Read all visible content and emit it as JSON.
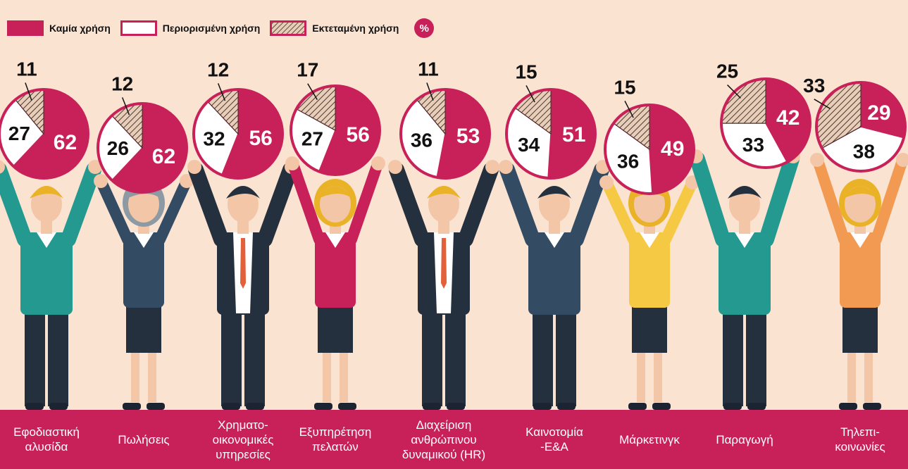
{
  "legend": {
    "items": [
      {
        "label": "Καμία χρήση",
        "key": "none"
      },
      {
        "label": "Περιορισμένη χρήση",
        "key": "limited"
      },
      {
        "label": "Εκτεταμένη χρήση",
        "key": "extensive"
      }
    ],
    "unit": "%"
  },
  "colors": {
    "none": "#c8215a",
    "limited": "#ffffff",
    "extensive": "#e8cdb8",
    "background": "#fbe3d2",
    "footer": "#c8215a"
  },
  "chart_data": {
    "type": "pie",
    "series_names": [
      "Καμία χρήση",
      "Περιορισμένη χρήση",
      "Εκτεταμένη χρήση"
    ],
    "unit": "%",
    "categories": [
      "Εφοδιαστική\nαλυσίδα",
      "Πωλήσεις",
      "Χρηματο-\nοικονομικές\nυπηρεσίες",
      "Εξυπηρέτηση\nπελατών",
      "Διαχείριση\nανθρώπινου\nδυναμικού (HR)",
      "Καινοτομία\n-Ε&Α",
      "Μάρκετινγκ",
      "Παραγωγή",
      "Τηλεπι-\nκοινωνίες"
    ],
    "values": [
      {
        "none": 62,
        "limited": 27,
        "extensive": 11
      },
      {
        "none": 62,
        "limited": 26,
        "extensive": 12
      },
      {
        "none": 56,
        "limited": 32,
        "extensive": 12
      },
      {
        "none": 56,
        "limited": 27,
        "extensive": 17
      },
      {
        "none": 53,
        "limited": 36,
        "extensive": 11
      },
      {
        "none": 51,
        "limited": 34,
        "extensive": 15
      },
      {
        "none": 49,
        "limited": 36,
        "extensive": 15
      },
      {
        "none": 42,
        "limited": 33,
        "extensive": 25
      },
      {
        "none": 29,
        "limited": 38,
        "extensive": 33
      }
    ],
    "people": [
      {
        "hair": "#e9b227",
        "top": "#23998f",
        "bottom": "#24303d",
        "suit": false,
        "female": false
      },
      {
        "hair": "#8d99a3",
        "top": "#334b63",
        "bottom": "#24303d",
        "suit": false,
        "female": true
      },
      {
        "hair": "#24303d",
        "top": "#24303d",
        "bottom": "#24303d",
        "suit": true,
        "female": false
      },
      {
        "hair": "#e9b227",
        "top": "#c8215a",
        "bottom": "#24303d",
        "suit": false,
        "female": true
      },
      {
        "hair": "#e9b227",
        "top": "#24303d",
        "bottom": "#24303d",
        "suit": true,
        "female": false
      },
      {
        "hair": "#24303d",
        "top": "#334b63",
        "bottom": "#24303d",
        "suit": false,
        "female": false
      },
      {
        "hair": "#e9b227",
        "top": "#f6c945",
        "bottom": "#24303d",
        "suit": false,
        "female": true
      },
      {
        "hair": "#24303d",
        "top": "#23998f",
        "bottom": "#24303d",
        "suit": false,
        "female": false
      },
      {
        "hair": "#e9b227",
        "top": "#f39a52",
        "bottom": "#24303d",
        "suit": false,
        "female": true
      }
    ]
  }
}
